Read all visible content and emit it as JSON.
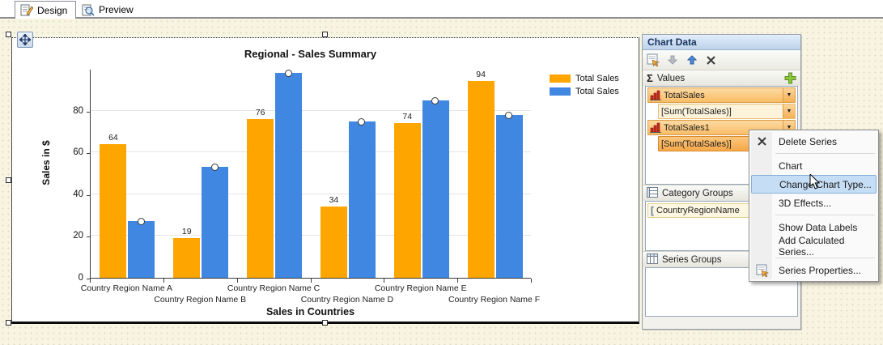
{
  "tabs": [
    {
      "label": "Design",
      "active": true,
      "icon": "design-tab-icon"
    },
    {
      "label": "Preview",
      "active": false,
      "icon": "preview-tab-icon"
    }
  ],
  "chart_data": {
    "type": "bar",
    "title": "Regional - Sales Summary",
    "xlabel": "Sales in Countries",
    "ylabel": "Sales in $",
    "categories": [
      "Country Region Name A",
      "Country Region Name B",
      "Country Region Name C",
      "Country Region Name D",
      "Country Region Name E",
      "Country Region Name F"
    ],
    "series": [
      {
        "name": "Total Sales",
        "color": "#FFA500",
        "values": [
          64,
          19,
          76,
          34,
          74,
          94
        ],
        "data_labels": true,
        "point_markers": false
      },
      {
        "name": "Total Sales",
        "color": "#3F87E1",
        "values": [
          27,
          53,
          98,
          75,
          85,
          78
        ],
        "data_labels": false,
        "point_markers": true
      }
    ],
    "ylim": [
      0,
      100
    ],
    "yticks": [
      0,
      20,
      40,
      60,
      80
    ],
    "grid": true,
    "legend_position": "right-top"
  },
  "panel": {
    "title": "Chart Data",
    "toolbar_icons": [
      "properties-icon",
      "move-down-icon",
      "move-up-icon",
      "delete-x-icon"
    ],
    "values_header": "Values",
    "values": [
      {
        "name": "TotalSales",
        "expr": "[Sum(TotalSales)]",
        "expr_selected": false
      },
      {
        "name": "TotalSales1",
        "expr": "[Sum(TotalSales)]",
        "expr_selected": true
      }
    ],
    "category_groups_header": "Category Groups",
    "category_groups": [
      "CountryRegionName"
    ],
    "series_groups_header": "Series Groups",
    "series_groups": []
  },
  "context_menu": {
    "items": [
      {
        "label": "Delete Series",
        "icon": "delete-x-icon"
      },
      {
        "separator": true
      },
      {
        "label": "Chart"
      },
      {
        "label": "Change Chart Type...",
        "highlighted": true
      },
      {
        "label": "3D Effects..."
      },
      {
        "separator": true
      },
      {
        "label": "Show Data Labels"
      },
      {
        "label": "Add Calculated Series..."
      },
      {
        "separator": true
      },
      {
        "label": "Series Properties...",
        "icon": "properties-icon"
      }
    ]
  }
}
